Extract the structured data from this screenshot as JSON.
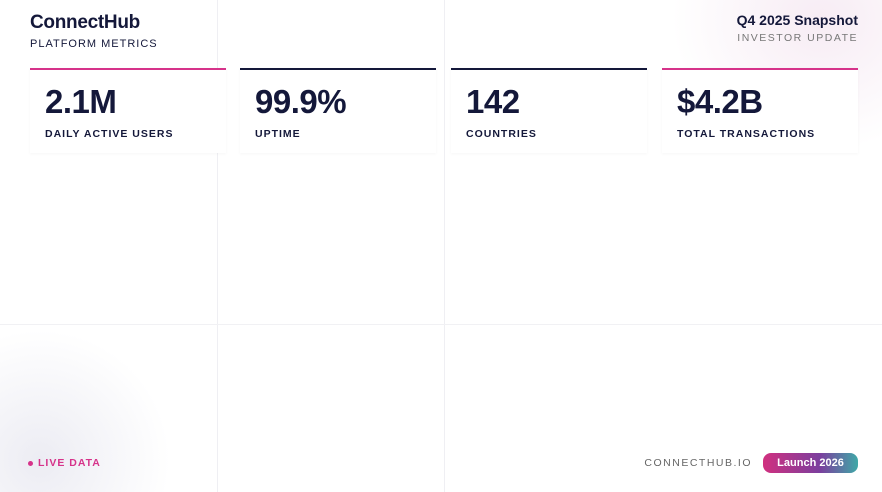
{
  "header": {
    "brand": "ConnectHub",
    "subtitle": "PLATFORM METRICS",
    "period": "Q4 2025 Snapshot",
    "period_sub": "INVESTOR UPDATE"
  },
  "metrics": [
    {
      "value": "2.1M",
      "label": "DAILY ACTIVE USERS",
      "accent": "#d6338a"
    },
    {
      "value": "99.9%",
      "label": "UPTIME",
      "accent": "#14183a"
    },
    {
      "value": "142",
      "label": "COUNTRIES",
      "accent": "#14183a"
    },
    {
      "value": "$4.2B",
      "label": "TOTAL TRANSACTIONS",
      "accent": "#d6338a"
    }
  ],
  "footer": {
    "live": "LIVE DATA",
    "site": "CONNECTHUB.IO",
    "launch": "Launch 2026"
  },
  "colors": {
    "navy": "#14183a",
    "pink": "#d6338a",
    "teal": "#3fa8a7"
  }
}
